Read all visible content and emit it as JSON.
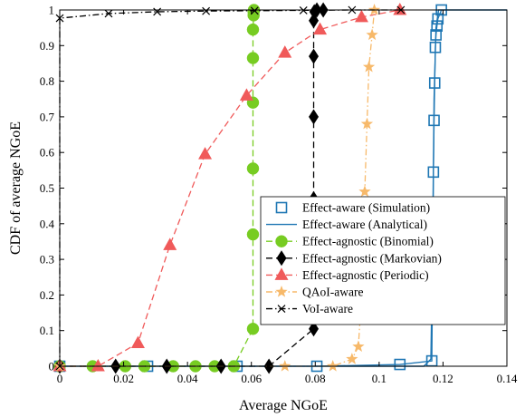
{
  "chart_data": {
    "type": "line",
    "xlabel": "Average NGoE",
    "ylabel": "CDF of average NGoE",
    "xlim": [
      0,
      0.14
    ],
    "ylim": [
      0,
      1
    ],
    "xticks": [
      0,
      0.02,
      0.04,
      0.06,
      0.08,
      0.1,
      0.12,
      0.14
    ],
    "xtick_labels": [
      "0",
      "0.02",
      "0.04",
      "0.06",
      "0.08",
      "0.1",
      "0.12",
      "0.14"
    ],
    "yticks": [
      0,
      0.1,
      0.2,
      0.3,
      0.4,
      0.5,
      0.6,
      0.7,
      0.8,
      0.9,
      1
    ],
    "ytick_labels": [
      "0",
      "0.1",
      "0.2",
      "0.3",
      "0.4",
      "0.5",
      "0.6",
      "0.7",
      "0.8",
      "0.9",
      "1"
    ],
    "grid": false,
    "legend_position": "lower-right",
    "series": [
      {
        "name": "Effect-aware (Simulation)",
        "color": "#1f77b4",
        "dash": "none",
        "marker": "square-open",
        "x": [
          0.0,
          0.0275,
          0.0555,
          0.0805,
          0.1065,
          0.1165,
          0.117,
          0.1172,
          0.1174,
          0.1176,
          0.1178,
          0.1181,
          0.1184,
          0.1195
        ],
        "y": [
          0.0,
          0.0,
          0.0,
          0.0,
          0.005,
          0.015,
          0.545,
          0.69,
          0.795,
          0.895,
          0.93,
          0.955,
          0.975,
          1.0
        ]
      },
      {
        "name": "Effect-aware (Analytical)",
        "color": "#1f77b4",
        "dash": "none",
        "marker": "none",
        "x": [
          0.0,
          0.114,
          0.1162,
          0.1167,
          0.1172,
          0.1178,
          0.1186,
          0.14
        ],
        "y": [
          0.0,
          0.0,
          0.02,
          0.3,
          0.75,
          0.95,
          1.0,
          1.0
        ]
      },
      {
        "name": "Effect-agnostic (Binomial)",
        "color": "#77cc22",
        "dash": "dashed",
        "marker": "circle",
        "x": [
          0.0,
          0.0103,
          0.0205,
          0.0265,
          0.0355,
          0.0425,
          0.0485,
          0.0545,
          0.0605,
          0.0605,
          0.0605,
          0.0605,
          0.0605,
          0.0605,
          0.0607,
          0.0607,
          0.0608
        ],
        "y": [
          0.0,
          0.0,
          0.0,
          0.0,
          0.0,
          0.0,
          0.0,
          0.0,
          0.105,
          0.37,
          0.555,
          0.74,
          0.865,
          0.945,
          0.985,
          0.995,
          1.0
        ]
      },
      {
        "name": "Effect-agnostic (Markovian)",
        "color": "#000000",
        "dash": "dashed",
        "marker": "diamond",
        "x": [
          0.0,
          0.0175,
          0.0335,
          0.0505,
          0.0655,
          0.0795,
          0.0795,
          0.0795,
          0.0795,
          0.0795,
          0.0797,
          0.0805,
          0.0825
        ],
        "y": [
          0.0,
          0.0,
          0.0,
          0.0,
          0.0,
          0.105,
          0.47,
          0.7,
          0.87,
          0.97,
          0.995,
          1.0,
          1.0
        ]
      },
      {
        "name": "Effect-agnostic (Periodic)",
        "color": "#f05a5a",
        "dash": "dashed",
        "marker": "triangle",
        "x": [
          0.0,
          0.012,
          0.0245,
          0.0345,
          0.0455,
          0.0585,
          0.0705,
          0.0815,
          0.0945,
          0.1065
        ],
        "y": [
          0.0,
          0.0,
          0.065,
          0.34,
          0.595,
          0.76,
          0.88,
          0.945,
          0.98,
          1.0
        ]
      },
      {
        "name": "QAoI-aware",
        "color": "#f7b96a",
        "dash": "dashdot",
        "marker": "star",
        "x": [
          0.0,
          0.0705,
          0.0855,
          0.0915,
          0.0935,
          0.0945,
          0.0955,
          0.0962,
          0.0968,
          0.0978,
          0.0985
        ],
        "y": [
          0.0,
          0.0,
          0.0,
          0.02,
          0.055,
          0.2,
          0.49,
          0.68,
          0.84,
          0.93,
          1.0
        ]
      },
      {
        "name": "VoI-aware",
        "color": "#000000",
        "dash": "dashdot",
        "marker": "x",
        "x": [
          0.0,
          0.0,
          0.0153,
          0.0305,
          0.0458,
          0.061,
          0.0763,
          0.0915,
          0.1068
        ],
        "y": [
          0.0,
          0.977,
          0.99,
          0.995,
          0.997,
          0.998,
          0.999,
          1.0,
          1.0
        ]
      }
    ]
  }
}
